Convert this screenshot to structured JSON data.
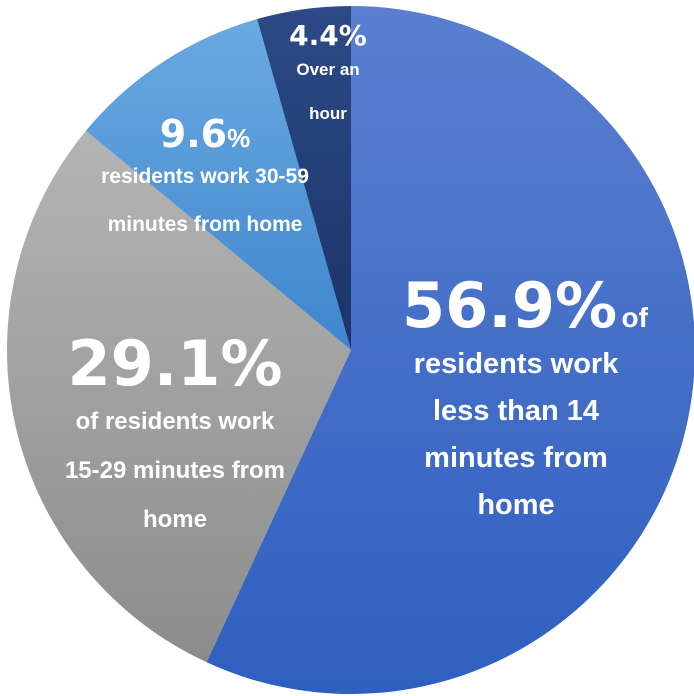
{
  "chart_data": {
    "type": "pie",
    "start_angle_deg": 0,
    "direction": "clockwise",
    "slices": [
      {
        "value": 56.9,
        "value_text": "56.9%",
        "pct_sign": "",
        "suffix": "of",
        "text": [
          "residents work",
          "less than 14",
          "minutes from",
          "home"
        ],
        "color_top": "#5a7fd0",
        "color_bottom": "#2f5fbf"
      },
      {
        "value": 29.1,
        "value_text": "29.1%",
        "pct_sign": "",
        "suffix": "",
        "text": [
          "of residents work",
          "15-29 minutes from",
          "home"
        ],
        "color_top": "#b4b4b4",
        "color_bottom": "#8c8c8c"
      },
      {
        "value": 9.6,
        "value_text": "9.6",
        "pct_sign": "%",
        "suffix": "",
        "text": [
          "residents work 30-59",
          "minutes from home"
        ],
        "color_top": "#6aaae2",
        "color_bottom": "#3f86cd"
      },
      {
        "value": 4.4,
        "value_text": "4.4%",
        "pct_sign": "",
        "suffix": "",
        "text": [
          "Over an",
          "hour"
        ],
        "color_top": "#2c4a86",
        "color_bottom": "#1b3468"
      }
    ]
  }
}
